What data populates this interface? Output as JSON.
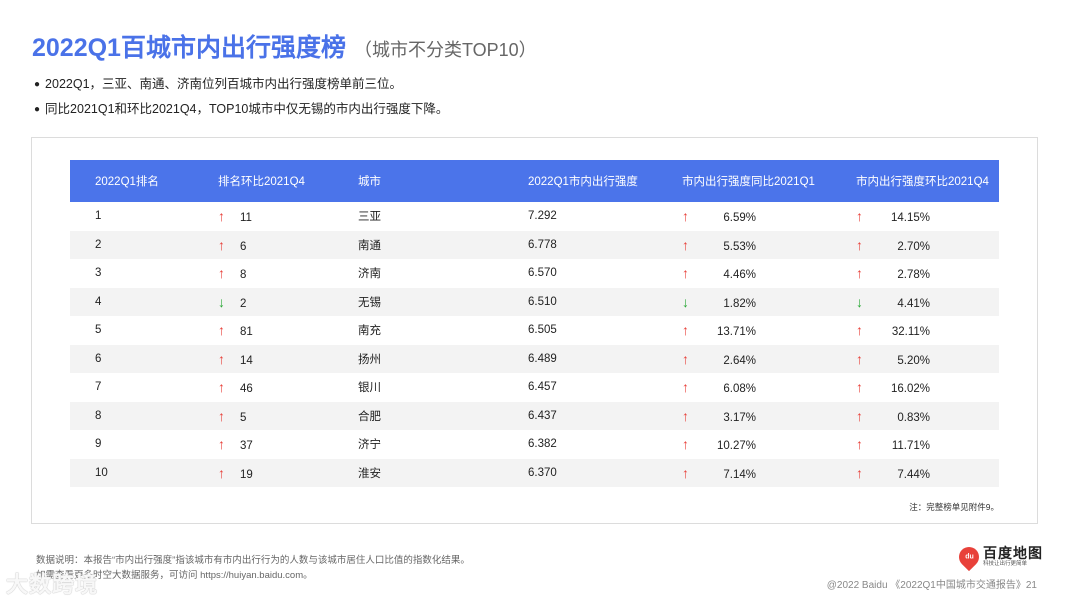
{
  "title": {
    "main": "2022Q1百城市内出行强度榜",
    "sub": "（城市不分类TOP10）"
  },
  "bullets": [
    "2022Q1，三亚、南通、济南位列百城市内出行强度榜单前三位。",
    "同比2021Q1和环比2021Q4，TOP10城市中仅无锡的市内出行强度下降。"
  ],
  "table": {
    "headers": [
      "2022Q1排名",
      "排名环比2021Q4",
      "城市",
      "2022Q1市内出行强度",
      "市内出行强度同比2021Q1",
      "市内出行强度环比2021Q4"
    ],
    "rows": [
      {
        "rank": "1",
        "rank_dir": "up",
        "rank_chg": "11",
        "city": "三亚",
        "intensity": "7.292",
        "yoy_dir": "up",
        "yoy": "6.59%",
        "qoq_dir": "up",
        "qoq": "14.15%"
      },
      {
        "rank": "2",
        "rank_dir": "up",
        "rank_chg": "6",
        "city": "南通",
        "intensity": "6.778",
        "yoy_dir": "up",
        "yoy": "5.53%",
        "qoq_dir": "up",
        "qoq": "2.70%"
      },
      {
        "rank": "3",
        "rank_dir": "up",
        "rank_chg": "8",
        "city": "济南",
        "intensity": "6.570",
        "yoy_dir": "up",
        "yoy": "4.46%",
        "qoq_dir": "up",
        "qoq": "2.78%"
      },
      {
        "rank": "4",
        "rank_dir": "down",
        "rank_chg": "2",
        "city": "无锡",
        "intensity": "6.510",
        "yoy_dir": "down",
        "yoy": "1.82%",
        "qoq_dir": "down",
        "qoq": "4.41%"
      },
      {
        "rank": "5",
        "rank_dir": "up",
        "rank_chg": "81",
        "city": "南充",
        "intensity": "6.505",
        "yoy_dir": "up",
        "yoy": "13.71%",
        "qoq_dir": "up",
        "qoq": "32.11%"
      },
      {
        "rank": "6",
        "rank_dir": "up",
        "rank_chg": "14",
        "city": "扬州",
        "intensity": "6.489",
        "yoy_dir": "up",
        "yoy": "2.64%",
        "qoq_dir": "up",
        "qoq": "5.20%"
      },
      {
        "rank": "7",
        "rank_dir": "up",
        "rank_chg": "46",
        "city": "银川",
        "intensity": "6.457",
        "yoy_dir": "up",
        "yoy": "6.08%",
        "qoq_dir": "up",
        "qoq": "16.02%"
      },
      {
        "rank": "8",
        "rank_dir": "up",
        "rank_chg": "5",
        "city": "合肥",
        "intensity": "6.437",
        "yoy_dir": "up",
        "yoy": "3.17%",
        "qoq_dir": "up",
        "qoq": "0.83%"
      },
      {
        "rank": "9",
        "rank_dir": "up",
        "rank_chg": "37",
        "city": "济宁",
        "intensity": "6.382",
        "yoy_dir": "up",
        "yoy": "10.27%",
        "qoq_dir": "up",
        "qoq": "11.71%"
      },
      {
        "rank": "10",
        "rank_dir": "up",
        "rank_chg": "19",
        "city": "淮安",
        "intensity": "6.370",
        "yoy_dir": "up",
        "yoy": "7.14%",
        "qoq_dir": "up",
        "qoq": "7.44%"
      }
    ],
    "arrows": {
      "up": "↑",
      "down": "↓"
    },
    "note": "注：完整榜单见附件9。"
  },
  "footnote": {
    "line1": "数据说明：本报告“市内出行强度”指该城市有市内出行行为的人数与该城市居住人口比值的指数化结果。",
    "line2": "如需查看更多时空大数据服务，可访问 https://huiyan.baidu.com。"
  },
  "logo": {
    "name": "百度地图",
    "slogan": "科技让出行更简单",
    "icon": "map-pin-icon"
  },
  "copyright": "@2022 Baidu 《2022Q1中国城市交通报告》21",
  "watermark": "大数跨境",
  "colors": {
    "accent": "#4a72e8",
    "header_bg": "#4b74ea",
    "up": "#e8413a",
    "down": "#2aa836"
  }
}
